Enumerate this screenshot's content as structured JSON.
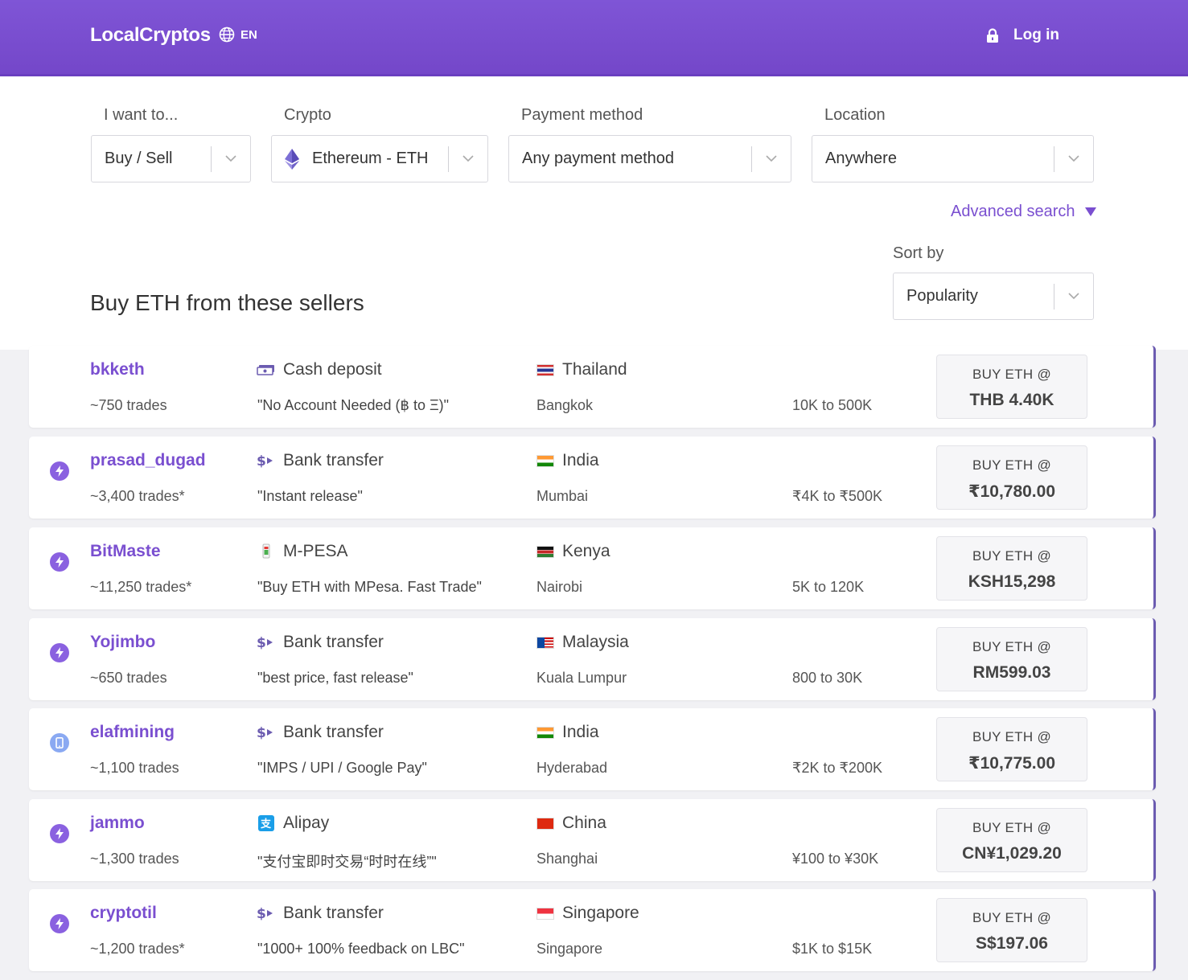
{
  "header": {
    "brand": "LocalCryptos",
    "language": "EN",
    "login_label": "Log in"
  },
  "filters": {
    "want": {
      "label": "I want to...",
      "value": "Buy / Sell"
    },
    "crypto": {
      "label": "Crypto",
      "value": "Ethereum - ETH"
    },
    "payment": {
      "label": "Payment method",
      "value": "Any payment method"
    },
    "location": {
      "label": "Location",
      "value": "Anywhere"
    },
    "advanced": "Advanced search",
    "sort": {
      "label": "Sort by",
      "value": "Popularity"
    }
  },
  "heading": "Buy ETH from these sellers",
  "colors": {
    "header": "#7f55d6",
    "accent": "#7a4fd0"
  },
  "offers": [
    {
      "badge": "none",
      "user": "bkketh",
      "trades": "~750 trades",
      "payment_icon": "cash-icon",
      "payment": "Cash deposit",
      "message": "\"No Account Needed (฿ to Ξ)\"",
      "country": "Thailand",
      "city": "Bangkok",
      "limits": "10K to  500K",
      "buy_label": "BUY ETH @",
      "price": "THB 4.40K"
    },
    {
      "badge": "bolt",
      "user": "prasad_dugad",
      "trades": "~3,400 trades*",
      "payment_icon": "bank-transfer-icon",
      "payment": "Bank transfer",
      "message": "\"Instant release\"",
      "country": "India",
      "city": "Mumbai",
      "limits": "₹4K to ₹500K",
      "buy_label": "BUY ETH @",
      "price": "₹10,780.00"
    },
    {
      "badge": "bolt",
      "user": "BitMaste",
      "trades": "~11,250 trades*",
      "payment_icon": "mpesa-icon",
      "payment": "M-PESA",
      "message": "\"Buy ETH with MPesa. Fast Trade\"",
      "country": "Kenya",
      "city": "Nairobi",
      "limits": "5K to 120K",
      "buy_label": "BUY ETH @",
      "price": "KSH15,298"
    },
    {
      "badge": "bolt",
      "user": "Yojimbo",
      "trades": "~650 trades",
      "payment_icon": "bank-transfer-icon",
      "payment": "Bank transfer",
      "message": "\"best price, fast release\"",
      "country": "Malaysia",
      "city": "Kuala Lumpur",
      "limits": "800 to 30K",
      "buy_label": "BUY ETH @",
      "price": "RM599.03"
    },
    {
      "badge": "phone",
      "user": "elafmining",
      "trades": "~1,100 trades",
      "payment_icon": "bank-transfer-icon",
      "payment": "Bank transfer",
      "message": "\"IMPS / UPI / Google Pay\"",
      "country": "India",
      "city": "Hyderabad",
      "limits": "₹2K to ₹200K",
      "buy_label": "BUY ETH @",
      "price": "₹10,775.00"
    },
    {
      "badge": "bolt",
      "user": "jammo",
      "trades": "~1,300 trades",
      "payment_icon": "alipay-icon",
      "payment": "Alipay",
      "message": "\"支付宝即时交易“时时在线”\"",
      "country": "China",
      "city": "Shanghai",
      "limits": "¥100 to ¥30K",
      "buy_label": "BUY ETH @",
      "price": "CN¥1,029.20"
    },
    {
      "badge": "bolt",
      "user": "cryptotil",
      "trades": "~1,200 trades*",
      "payment_icon": "bank-transfer-icon",
      "payment": "Bank transfer",
      "message": "\"1000+ 100% feedback on LBC\"",
      "country": "Singapore",
      "city": "Singapore",
      "limits": "$1K to $15K",
      "buy_label": "BUY ETH @",
      "price": "S$197.06"
    }
  ]
}
